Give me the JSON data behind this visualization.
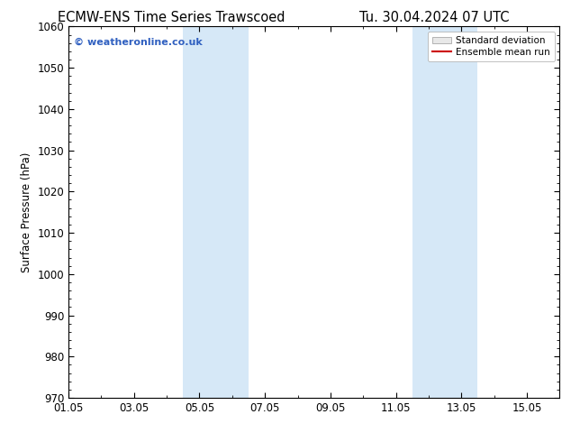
{
  "title_left": "ECMW-ENS Time Series Trawscoed",
  "title_right": "Tu. 30.04.2024 07 UTC",
  "ylabel": "Surface Pressure (hPa)",
  "ylim": [
    970,
    1060
  ],
  "yticks": [
    970,
    980,
    990,
    1000,
    1010,
    1020,
    1030,
    1040,
    1050,
    1060
  ],
  "x_min": 0,
  "x_max": 15,
  "xtick_labels": [
    "01.05",
    "03.05",
    "05.05",
    "07.05",
    "09.05",
    "11.05",
    "13.05",
    "15.05"
  ],
  "xtick_positions": [
    0,
    2,
    4,
    6,
    8,
    10,
    12,
    14
  ],
  "shaded_bands": [
    {
      "x_start": 3.5,
      "x_end": 5.5
    },
    {
      "x_start": 10.5,
      "x_end": 12.5
    }
  ],
  "shade_color": "#d6e8f7",
  "watermark_text": "© weatheronline.co.uk",
  "watermark_color": "#3060c0",
  "legend_std_label": "Standard deviation",
  "legend_ens_label": "Ensemble mean run",
  "legend_std_facecolor": "#e8e8e8",
  "legend_std_edgecolor": "#999999",
  "legend_ens_color": "#cc0000",
  "background_color": "#ffffff",
  "axes_bg_color": "#ffffff",
  "title_fontsize": 10.5,
  "ylabel_fontsize": 8.5,
  "tick_label_fontsize": 8.5,
  "watermark_fontsize": 8,
  "legend_fontsize": 7.5
}
